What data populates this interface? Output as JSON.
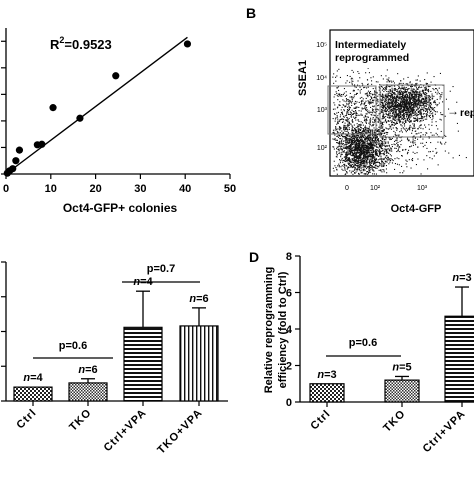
{
  "chart_data": [
    {
      "type": "scatter",
      "panel": "",
      "xlabel": "Oct4-GFP+ colonies",
      "ylabel": "",
      "xlim": [
        0,
        50
      ],
      "ylim": [
        0,
        55
      ],
      "xticks": [
        "0",
        "10",
        "20",
        "30",
        "40",
        "50"
      ],
      "annotation": {
        "prefix": "R",
        "sup": "2",
        "rest": "=0.9523"
      },
      "points": [
        {
          "x": 0.3,
          "y": 0.3
        },
        {
          "x": 0.8,
          "y": 1.2
        },
        {
          "x": 1.5,
          "y": 2.0
        },
        {
          "x": 2.2,
          "y": 5.0
        },
        {
          "x": 3.0,
          "y": 9.0
        },
        {
          "x": 7.0,
          "y": 11.0
        },
        {
          "x": 8.0,
          "y": 11.2
        },
        {
          "x": 10.5,
          "y": 25.0
        },
        {
          "x": 16.5,
          "y": 21.0
        },
        {
          "x": 24.5,
          "y": 37.0
        },
        {
          "x": 40.5,
          "y": 49.0
        }
      ],
      "fit": {
        "x": [
          0,
          40.5
        ],
        "y": [
          0,
          51.5
        ]
      }
    },
    {
      "type": "scatter",
      "panel": "B",
      "xlabel": "Oct4-GFP",
      "ylabel": "SSEA1",
      "scale": "log",
      "xticks": [
        "0",
        "10²",
        "10³"
      ],
      "yticks": [
        "10²",
        "10³",
        "10⁴",
        "10⁵"
      ],
      "gate_labels": [
        "Intermediately",
        "reprogrammed"
      ],
      "side_label": "rep",
      "arrows": [
        "↑",
        "→"
      ]
    },
    {
      "type": "bar",
      "panel": "",
      "categories": [
        "Ctrl",
        "TKO",
        "Ctrl+VPA",
        "TKO+VPA"
      ],
      "values": [
        1,
        1.3,
        5.3,
        5.4
      ],
      "errors": [
        0,
        0.3,
        2.6,
        1.3
      ],
      "ylim": [
        0,
        10
      ],
      "n_labels": [
        "=4",
        "=6",
        "=4",
        "=6"
      ],
      "p_values": [
        "p=0.6",
        "p=0.7"
      ]
    },
    {
      "type": "bar",
      "panel": "D",
      "categories": [
        "Ctrl",
        "TKO",
        "Ctrl+VPA"
      ],
      "values": [
        1,
        1.2,
        4.7
      ],
      "errors": [
        0,
        0.2,
        1.6
      ],
      "ylim": [
        0,
        8
      ],
      "yticks": [
        "0",
        "2",
        "4",
        "6",
        "8"
      ],
      "ylabel_lines": [
        "Relative reprogramming",
        "efficiency (fold to Ctrl)"
      ],
      "n_labels": [
        "=3",
        "=5",
        "=3"
      ],
      "p_values": [
        "p=0.6"
      ]
    }
  ]
}
